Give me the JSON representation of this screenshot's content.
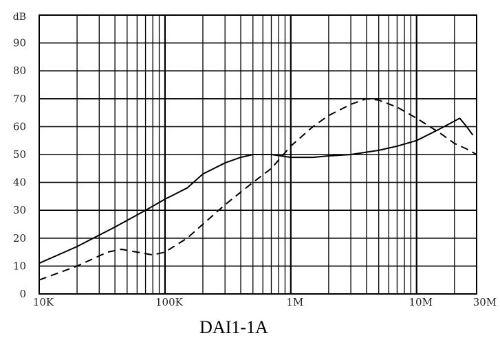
{
  "chart_data": {
    "type": "line",
    "caption": "DAI1-1A",
    "y_unit": "dB",
    "x_scale": "log",
    "xlim_hz": [
      10000,
      30000000
    ],
    "ylim": [
      0,
      100
    ],
    "x_tick_labels": [
      {
        "label": "10K",
        "value_hz": 10000
      },
      {
        "label": "100K",
        "value_hz": 100000
      },
      {
        "label": "1M",
        "value_hz": 1000000
      },
      {
        "label": "10M",
        "value_hz": 10000000
      },
      {
        "label": "30M",
        "value_hz": 30000000
      }
    ],
    "y_ticks": [
      0,
      10,
      20,
      30,
      40,
      50,
      60,
      70,
      80,
      90
    ],
    "grid": true,
    "series": [
      {
        "style": "solid",
        "color": "#000000",
        "points": [
          [
            10000,
            11
          ],
          [
            20000,
            17
          ],
          [
            40000,
            24
          ],
          [
            70000,
            30
          ],
          [
            100000,
            34
          ],
          [
            150000,
            38
          ],
          [
            200000,
            43
          ],
          [
            300000,
            47
          ],
          [
            400000,
            49
          ],
          [
            500000,
            50
          ],
          [
            700000,
            50
          ],
          [
            1000000,
            49
          ],
          [
            1500000,
            49
          ],
          [
            2000000,
            49.5
          ],
          [
            3000000,
            50
          ],
          [
            5000000,
            51.5
          ],
          [
            7000000,
            53
          ],
          [
            10000000,
            55
          ],
          [
            15000000,
            59
          ],
          [
            22000000,
            63
          ],
          [
            25000000,
            60
          ],
          [
            28000000,
            57
          ]
        ]
      },
      {
        "style": "dashed",
        "color": "#000000",
        "points": [
          [
            10000,
            5
          ],
          [
            20000,
            10
          ],
          [
            35000,
            15
          ],
          [
            45000,
            16
          ],
          [
            60000,
            15
          ],
          [
            80000,
            14
          ],
          [
            100000,
            15
          ],
          [
            150000,
            20
          ],
          [
            200000,
            25
          ],
          [
            300000,
            32
          ],
          [
            500000,
            40
          ],
          [
            700000,
            45
          ],
          [
            1000000,
            53
          ],
          [
            1500000,
            60
          ],
          [
            2000000,
            64
          ],
          [
            3000000,
            68
          ],
          [
            4000000,
            70
          ],
          [
            5000000,
            69.5
          ],
          [
            7000000,
            67
          ],
          [
            10000000,
            63
          ],
          [
            15000000,
            58
          ],
          [
            20000000,
            54
          ],
          [
            25000000,
            52
          ],
          [
            30000000,
            50
          ]
        ]
      }
    ]
  }
}
